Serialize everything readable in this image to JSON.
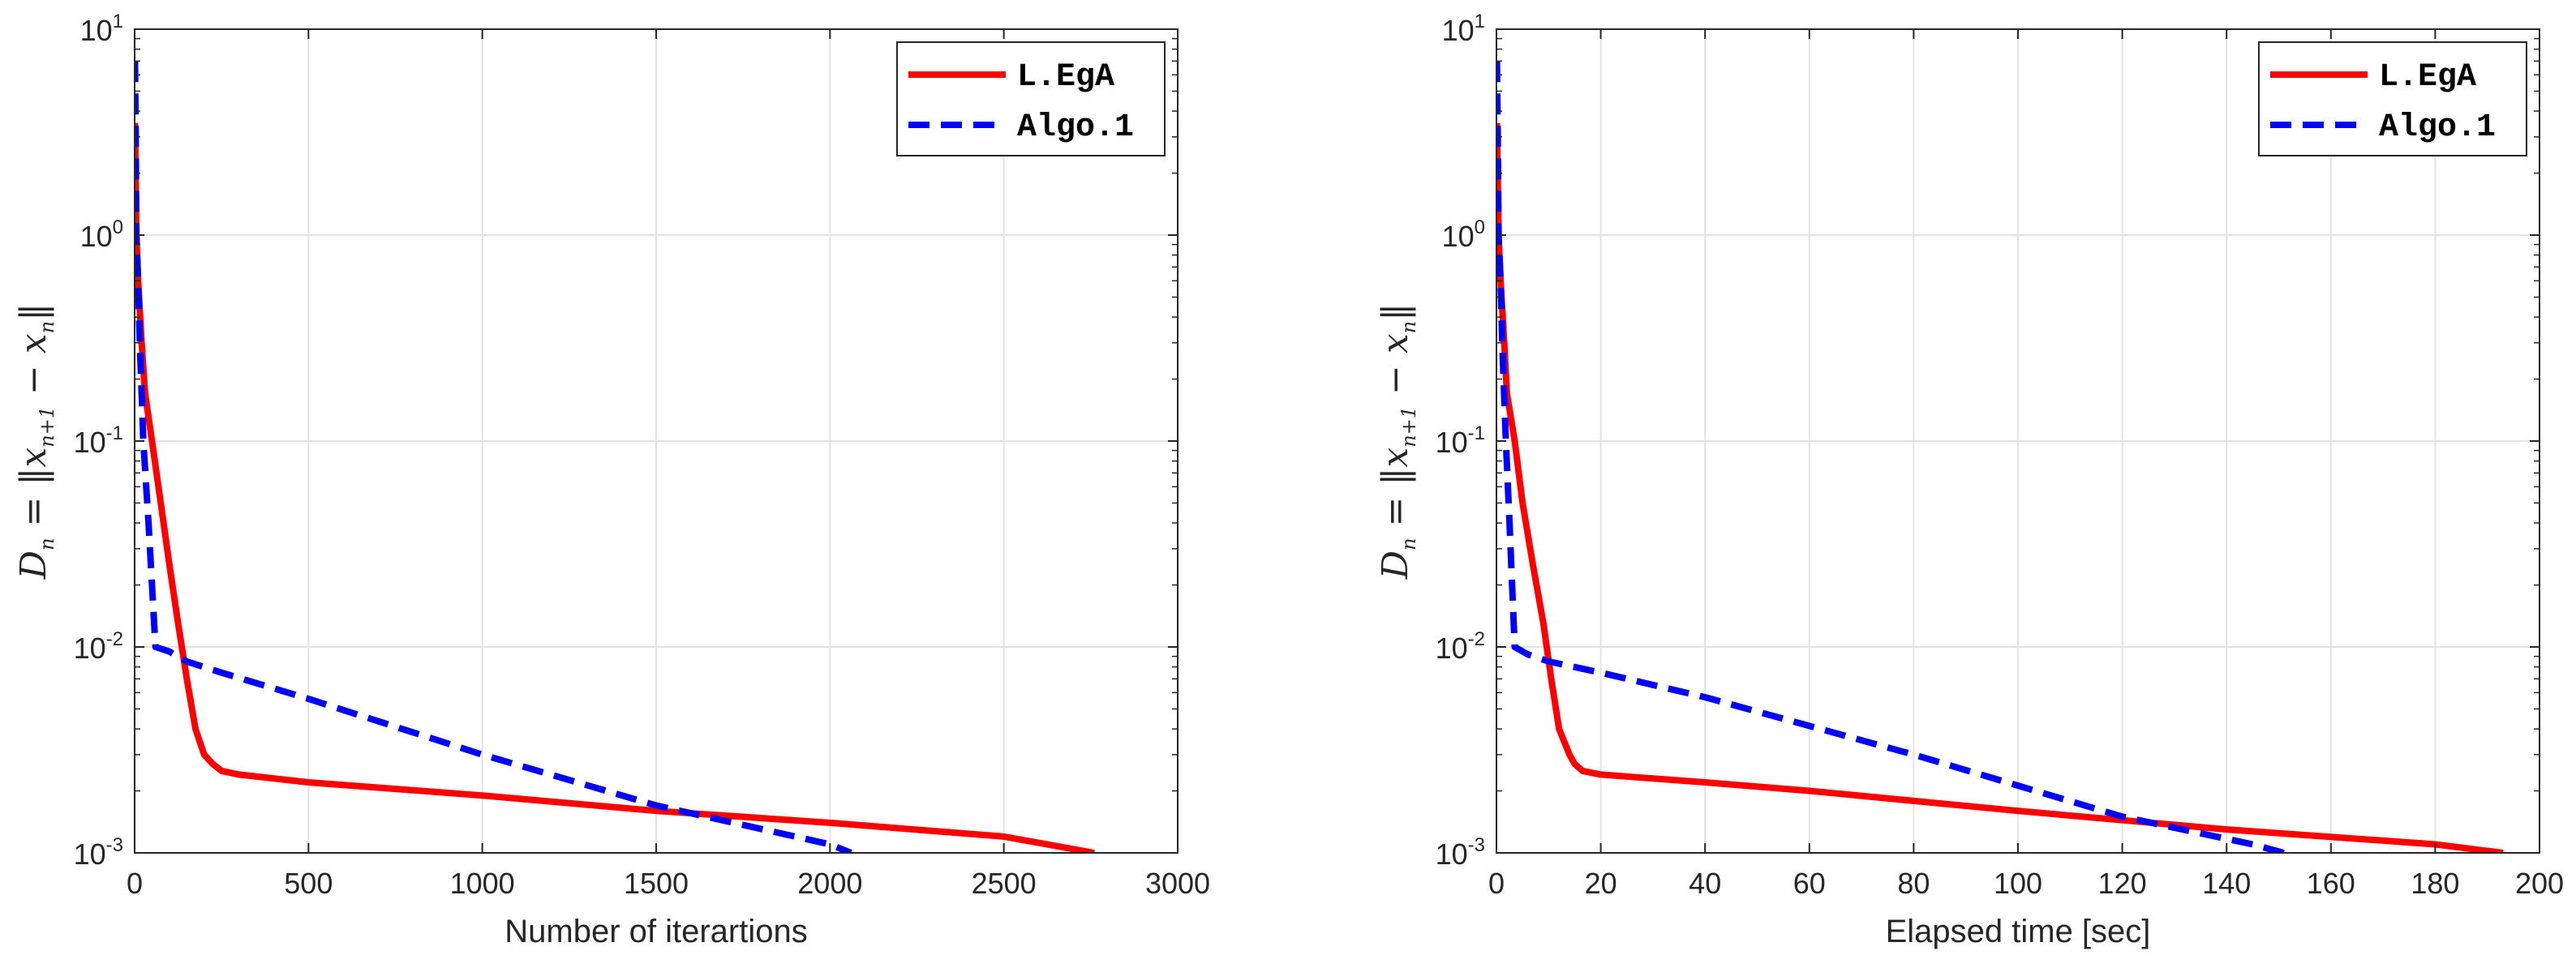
{
  "colors": {
    "series_red": "#ff0000",
    "series_blue": "#0000ff",
    "grid": "#e3e3e3",
    "axis": "#262626"
  },
  "chart_data": [
    {
      "type": "line",
      "id": "iterations",
      "xlabel": "Number of iterartions",
      "ylabel": "D_n = ||x_{n+1} − x_n||",
      "ylabel_parts": {
        "lhs": "D",
        "lhs_sub": "n",
        "eq": " = ‖",
        "a": "x",
        "a_sub": "n+1",
        "minus": " − ",
        "b": "x",
        "b_sub": "n",
        "close": "‖"
      },
      "yscale": "log",
      "xlim": [
        0,
        3000
      ],
      "ylim": [
        0.001,
        10
      ],
      "xticks": [
        0,
        500,
        1000,
        1500,
        2000,
        2500,
        3000
      ],
      "xtick_labels": [
        "0",
        "500",
        "1000",
        "1500",
        "2000",
        "2500",
        "3000"
      ],
      "yticks": [
        0.001,
        0.01,
        0.1,
        1,
        10
      ],
      "ytick_labels": [
        {
          "base": "10",
          "exp": "-3"
        },
        {
          "base": "10",
          "exp": "-2"
        },
        {
          "base": "10",
          "exp": "-1"
        },
        {
          "base": "10",
          "exp": "0"
        },
        {
          "base": "10",
          "exp": "1"
        }
      ],
      "grid": true,
      "legend": {
        "placement": "top-right",
        "entries": [
          "L.EgA",
          "Algo.1"
        ]
      },
      "series": [
        {
          "name": "L.EgA",
          "style": "solid",
          "x": [
            1,
            5,
            10,
            20,
            30,
            50,
            75,
            100,
            125,
            150,
            175,
            200,
            225,
            250,
            300,
            500,
            1000,
            1500,
            2000,
            2500,
            2760
          ],
          "y": [
            3.5,
            1.0,
            0.6,
            0.3,
            0.17,
            0.1,
            0.05,
            0.025,
            0.013,
            0.007,
            0.004,
            0.003,
            0.0027,
            0.0025,
            0.0024,
            0.0022,
            0.0019,
            0.0016,
            0.0014,
            0.0012,
            0.001
          ]
        },
        {
          "name": "Algo.1",
          "style": "dashed",
          "x": [
            1,
            3,
            5,
            10,
            15,
            25,
            40,
            60,
            100,
            150,
            250,
            500,
            1000,
            1500,
            2000,
            2060
          ],
          "y": [
            7.0,
            3.0,
            1.0,
            0.6,
            0.3,
            0.1,
            0.04,
            0.01,
            0.0095,
            0.0085,
            0.0075,
            0.0056,
            0.003,
            0.0017,
            0.0011,
            0.001
          ]
        }
      ]
    },
    {
      "type": "line",
      "id": "time",
      "xlabel": "Elapsed time [sec]",
      "ylabel": "D_n = ||x_{n+1} − x_n||",
      "ylabel_parts": {
        "lhs": "D",
        "lhs_sub": "n",
        "eq": " = ‖",
        "a": "x",
        "a_sub": "n+1",
        "minus": " − ",
        "b": "x",
        "b_sub": "n",
        "close": "‖"
      },
      "yscale": "log",
      "xlim": [
        0,
        200
      ],
      "ylim": [
        0.001,
        10
      ],
      "xticks": [
        0,
        20,
        40,
        60,
        80,
        100,
        120,
        140,
        160,
        180,
        200
      ],
      "xtick_labels": [
        "0",
        "20",
        "40",
        "60",
        "80",
        "100",
        "120",
        "140",
        "160",
        "180",
        "200"
      ],
      "yticks": [
        0.001,
        0.01,
        0.1,
        1,
        10
      ],
      "ytick_labels": [
        {
          "base": "10",
          "exp": "-3"
        },
        {
          "base": "10",
          "exp": "-2"
        },
        {
          "base": "10",
          "exp": "-1"
        },
        {
          "base": "10",
          "exp": "0"
        },
        {
          "base": "10",
          "exp": "1"
        }
      ],
      "grid": true,
      "legend": {
        "placement": "top-right",
        "entries": [
          "L.EgA",
          "Algo.1"
        ]
      },
      "series": [
        {
          "name": "L.EgA",
          "style": "solid",
          "x": [
            0.1,
            0.4,
            0.8,
            1.5,
            2,
            3.5,
            5,
            7,
            9,
            10.5,
            12,
            14,
            15,
            16.5,
            20,
            40,
            60,
            100,
            140,
            180,
            193
          ],
          "y": [
            3.5,
            1.0,
            0.6,
            0.3,
            0.17,
            0.1,
            0.05,
            0.025,
            0.013,
            0.007,
            0.004,
            0.003,
            0.0027,
            0.0025,
            0.0024,
            0.0022,
            0.002,
            0.0016,
            0.0013,
            0.0011,
            0.001
          ]
        },
        {
          "name": "Algo.1",
          "style": "dashed",
          "x": [
            0.1,
            0.25,
            0.4,
            0.8,
            1.1,
            1.8,
            2.5,
            3.5,
            6,
            10,
            20,
            40,
            80,
            120,
            145,
            151
          ],
          "y": [
            7.0,
            3.0,
            1.0,
            0.6,
            0.3,
            0.1,
            0.04,
            0.01,
            0.0092,
            0.0085,
            0.0075,
            0.0057,
            0.003,
            0.0015,
            0.0011,
            0.001
          ]
        }
      ]
    }
  ]
}
